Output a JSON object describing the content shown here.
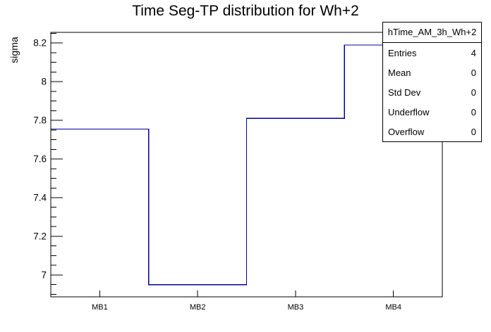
{
  "chart_data": {
    "type": "step-histogram",
    "title": "Time Seg-TP distribution for Wh+2",
    "xlabel": "",
    "ylabel": "sigma",
    "categories": [
      "MB1",
      "MB2",
      "MB3",
      "MB4"
    ],
    "values": [
      7.755,
      6.95,
      7.81,
      8.19
    ],
    "ylim": [
      6.887,
      8.255
    ],
    "ytick_step": 0.2,
    "ytick_minor_step": 0.05,
    "ymajor_tick_labels": [
      "7",
      "7.2",
      "7.4",
      "7.6",
      "7.8",
      "8",
      "8.2"
    ],
    "grid": "off",
    "legend": "none",
    "line_color": "#000099",
    "frame_color": "#000000",
    "background_color": "#ffffff"
  },
  "stats_box": {
    "header": "hTime_AM_3h_Wh+2",
    "rows": [
      {
        "label": "Entries",
        "value": "4"
      },
      {
        "label": "Mean",
        "value": "0"
      },
      {
        "label": "Std Dev",
        "value": "0"
      },
      {
        "label": "Underflow",
        "value": "0"
      },
      {
        "label": "Overflow",
        "value": "0"
      }
    ]
  }
}
